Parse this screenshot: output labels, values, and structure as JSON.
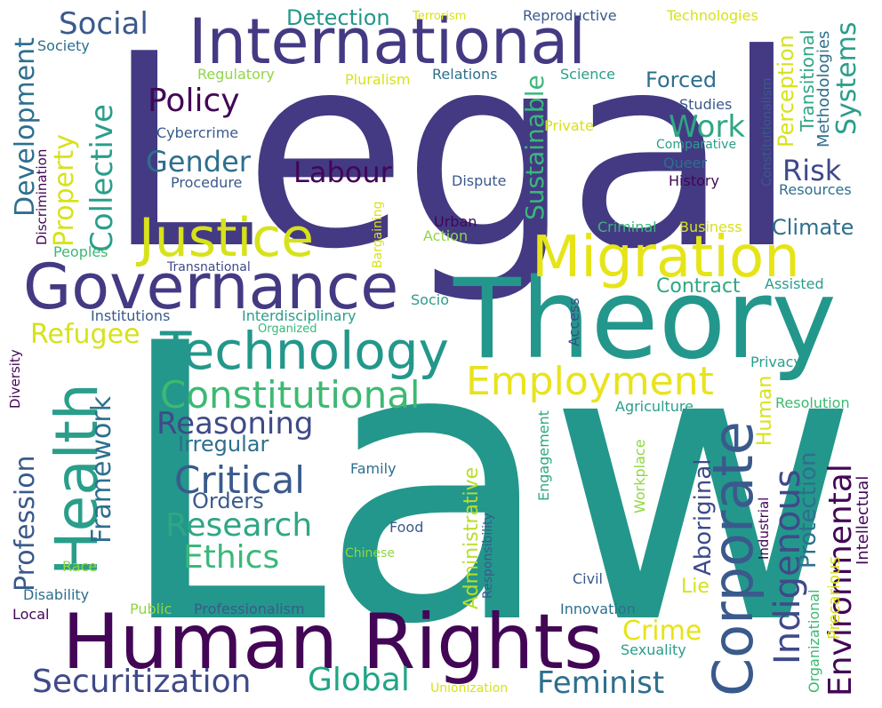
{
  "words": [
    {
      "text": "Law",
      "color": "#23978b"
    },
    {
      "text": "Legal",
      "color": "#433a83"
    },
    {
      "text": "Theory",
      "color": "#23978b"
    },
    {
      "text": "Human Rights",
      "color": "#430656"
    },
    {
      "text": "International",
      "color": "#433a83"
    },
    {
      "text": "Governance",
      "color": "#433a83"
    },
    {
      "text": "Migration",
      "color": "#e6e417"
    },
    {
      "text": "Justice",
      "color": "#d7e21a"
    },
    {
      "text": "Technology",
      "color": "#23978b"
    },
    {
      "text": "Health",
      "color": "#2a9e8b"
    },
    {
      "text": "Corporate",
      "color": "#3a5a8c"
    },
    {
      "text": "Employment",
      "color": "#e8e31c"
    },
    {
      "text": "Constitutional",
      "color": "#3cb972"
    },
    {
      "text": "Critical",
      "color": "#3a5a8c"
    },
    {
      "text": "Securitization",
      "color": "#3f4a89"
    },
    {
      "text": "Global",
      "color": "#21a585"
    },
    {
      "text": "Feminist",
      "color": "#2d6f8e"
    },
    {
      "text": "Indigenous",
      "color": "#3f4a89"
    },
    {
      "text": "Environmental",
      "color": "#430656"
    },
    {
      "text": "Research",
      "color": "#2ea784"
    },
    {
      "text": "Ethics",
      "color": "#39b87a"
    },
    {
      "text": "Reasoning",
      "color": "#3f4a89"
    },
    {
      "text": "Policy",
      "color": "#430656"
    },
    {
      "text": "Gender",
      "color": "#2d6f8e"
    },
    {
      "text": "Labour",
      "color": "#430656"
    },
    {
      "text": "Work",
      "color": "#2ea784"
    },
    {
      "text": "Risk",
      "color": "#3f4a89"
    },
    {
      "text": "Social",
      "color": "#3a5a8c"
    },
    {
      "text": "Detection",
      "color": "#23978b"
    },
    {
      "text": "Refugee",
      "color": "#d7e21a"
    },
    {
      "text": "Collective",
      "color": "#2a9e8b"
    },
    {
      "text": "Development",
      "color": "#2d6f8e"
    },
    {
      "text": "Property",
      "color": "#d7e21a"
    },
    {
      "text": "Profession",
      "color": "#3a5a8c"
    },
    {
      "text": "Framework",
      "color": "#2d6f8e"
    },
    {
      "text": "Sustainable",
      "color": "#39b87a"
    },
    {
      "text": "Systems",
      "color": "#2a9e8b"
    },
    {
      "text": "Perception",
      "color": "#d7e21a"
    },
    {
      "text": "Forced",
      "color": "#2d6f8e"
    },
    {
      "text": "Climate",
      "color": "#2d6f8e"
    },
    {
      "text": "Contract",
      "color": "#2ea784"
    },
    {
      "text": "Irregular",
      "color": "#2d6f8e"
    },
    {
      "text": "Orders",
      "color": "#3a5a8c"
    },
    {
      "text": "Crime",
      "color": "#e6e417"
    },
    {
      "text": "Protection",
      "color": "#2d6f8e"
    },
    {
      "text": "Aboriginal",
      "color": "#3f4a89"
    },
    {
      "text": "Administrative",
      "color": "#b8de29"
    },
    {
      "text": "Human",
      "color": "#d7e21a"
    },
    {
      "text": "Lie",
      "color": "#d7e21a"
    },
    {
      "text": "Intellectual",
      "color": "#430656"
    },
    {
      "text": "Precarious",
      "color": "#d7e21a"
    },
    {
      "text": "Organizational",
      "color": "#3cb972"
    },
    {
      "text": "Transitional",
      "color": "#2ea784"
    },
    {
      "text": "Methodologies",
      "color": "#2d6f8e"
    },
    {
      "text": "Constitutionalism",
      "color": "#3a5a8c"
    },
    {
      "text": "Technologies",
      "color": "#d7e21a"
    },
    {
      "text": "Reproductive",
      "color": "#3a5a8c"
    },
    {
      "text": "Terrorism",
      "color": "#d7e21a"
    },
    {
      "text": "Society",
      "color": "#2d6f8e"
    },
    {
      "text": "Regulatory",
      "color": "#8fd744"
    },
    {
      "text": "Pluralism",
      "color": "#d7e21a"
    },
    {
      "text": "Relations",
      "color": "#2d6f8e"
    },
    {
      "text": "Science",
      "color": "#2a9e8b"
    },
    {
      "text": "Studies",
      "color": "#3a5a8c"
    },
    {
      "text": "Comparative",
      "color": "#2a9e8b"
    },
    {
      "text": "Queer",
      "color": "#2d6f8e"
    },
    {
      "text": "History",
      "color": "#430656"
    },
    {
      "text": "Resources",
      "color": "#2d6f8e"
    },
    {
      "text": "Cybercrime",
      "color": "#3a5a8c"
    },
    {
      "text": "Procedure",
      "color": "#3a5a8c"
    },
    {
      "text": "Private",
      "color": "#d7e21a"
    },
    {
      "text": "Dispute",
      "color": "#3a5a8c"
    },
    {
      "text": "Urban",
      "color": "#430656"
    },
    {
      "text": "Action",
      "color": "#8fd744"
    },
    {
      "text": "Criminal",
      "color": "#39b87a"
    },
    {
      "text": "Business",
      "color": "#d7e21a"
    },
    {
      "text": "Assisted",
      "color": "#2a9e8b"
    },
    {
      "text": "Bargaining",
      "color": "#d7e21a"
    },
    {
      "text": "Discrimination",
      "color": "#430656"
    },
    {
      "text": "Peoples",
      "color": "#3cb972"
    },
    {
      "text": "Transnational",
      "color": "#3f4a89"
    },
    {
      "text": "Institutions",
      "color": "#3a5a8c"
    },
    {
      "text": "Interdisciplinary",
      "color": "#2a9e8b"
    },
    {
      "text": "Organized",
      "color": "#39b87a"
    },
    {
      "text": "Socio",
      "color": "#2a9e8b"
    },
    {
      "text": "Access",
      "color": "#3f4a89"
    },
    {
      "text": "Privacy",
      "color": "#2a9e8b"
    },
    {
      "text": "Diversity",
      "color": "#430656"
    },
    {
      "text": "Agriculture",
      "color": "#2a9e8b"
    },
    {
      "text": "Resolution",
      "color": "#3cb972"
    },
    {
      "text": "Engagement",
      "color": "#2ea784"
    },
    {
      "text": "Workplace",
      "color": "#8fd744"
    },
    {
      "text": "Family",
      "color": "#2d6f8e"
    },
    {
      "text": "Responsibility",
      "color": "#3a5a8c"
    },
    {
      "text": "Food",
      "color": "#3a5a8c"
    },
    {
      "text": "Chinese",
      "color": "#8fd744"
    },
    {
      "text": "Industrial",
      "color": "#430656"
    },
    {
      "text": "Race",
      "color": "#8fd744"
    },
    {
      "text": "Disability",
      "color": "#2d6f8e"
    },
    {
      "text": "Civil",
      "color": "#3a5a8c"
    },
    {
      "text": "Local",
      "color": "#430656"
    },
    {
      "text": "Public",
      "color": "#8fd744"
    },
    {
      "text": "Professionalism",
      "color": "#3a5a8c"
    },
    {
      "text": "Innovation",
      "color": "#2d6f8e"
    },
    {
      "text": "Sexuality",
      "color": "#2a9e8b"
    },
    {
      "text": "Unionization",
      "color": "#d7e21a"
    }
  ]
}
